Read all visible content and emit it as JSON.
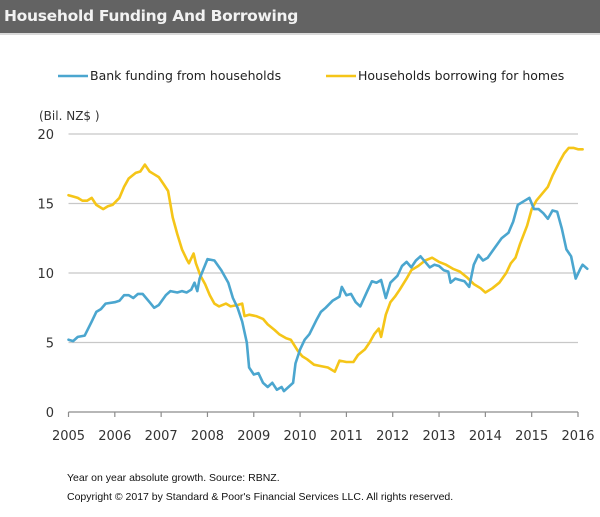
{
  "header": {
    "title": "Household Funding And Borrowing"
  },
  "footer": {
    "note": "Year on year absolute growth. Source: RBNZ.",
    "copyright": "Copyright © 2017 by Standard & Poor's Financial Services LLC. All rights reserved."
  },
  "chart_data": {
    "type": "line",
    "title": "Household Funding And Borrowing",
    "xlabel": "",
    "ylabel": "(Bil. NZ$ )",
    "xlim": [
      2005,
      2016
    ],
    "ylim": [
      0,
      20
    ],
    "x_ticks": [
      "2005",
      "2006",
      "2007",
      "2008",
      "2009",
      "2010",
      "2011",
      "2012",
      "2013",
      "2014",
      "2015",
      "2016"
    ],
    "y_ticks": [
      "0",
      "5",
      "10",
      "15",
      "20"
    ],
    "grid": "horizontal",
    "legend_position": "top",
    "series": [
      {
        "name": "Bank funding from households",
        "color": "#4BA6CF",
        "x": [
          2005.0,
          2005.1,
          2005.2,
          2005.35,
          2005.5,
          2005.6,
          2005.7,
          2005.8,
          2006.0,
          2006.1,
          2006.2,
          2006.3,
          2006.4,
          2006.5,
          2006.6,
          2006.75,
          2006.85,
          2006.95,
          2007.1,
          2007.2,
          2007.35,
          2007.45,
          2007.55,
          2007.65,
          2007.72,
          2007.78,
          2007.83,
          2008.0,
          2008.15,
          2008.3,
          2008.45,
          2008.55,
          2008.65,
          2008.75,
          2008.85,
          2008.9,
          2009.0,
          2009.1,
          2009.2,
          2009.3,
          2009.4,
          2009.5,
          2009.6,
          2009.65,
          2009.75,
          2009.85,
          2009.9,
          2010.0,
          2010.1,
          2010.2,
          2010.35,
          2010.45,
          2010.55,
          2010.7,
          2010.85,
          2010.9,
          2011.0,
          2011.1,
          2011.2,
          2011.3,
          2011.45,
          2011.55,
          2011.65,
          2011.75,
          2011.85,
          2011.95,
          2012.1,
          2012.2,
          2012.3,
          2012.4,
          2012.5,
          2012.6,
          2012.7,
          2012.8,
          2012.9,
          2013.0,
          2013.1,
          2013.2,
          2013.25,
          2013.35,
          2013.45,
          2013.55,
          2013.65,
          2013.75,
          2013.85,
          2013.95,
          2014.05,
          2014.2,
          2014.35,
          2014.5,
          2014.6,
          2014.7,
          2014.85,
          2014.95,
          2015.05,
          2015.15,
          2015.25,
          2015.35,
          2015.45,
          2015.55,
          2015.65,
          2015.75,
          2015.85,
          2015.95,
          2016.05,
          2016.1,
          2016.2
        ],
        "values": [
          5.2,
          5.1,
          5.4,
          5.5,
          6.5,
          7.2,
          7.4,
          7.8,
          7.9,
          8.0,
          8.4,
          8.4,
          8.2,
          8.5,
          8.5,
          7.9,
          7.5,
          7.7,
          8.4,
          8.7,
          8.6,
          8.7,
          8.6,
          8.8,
          9.3,
          8.7,
          9.6,
          11.0,
          10.9,
          10.2,
          9.3,
          8.2,
          7.5,
          6.5,
          5.0,
          3.2,
          2.7,
          2.8,
          2.1,
          1.8,
          2.1,
          1.6,
          1.8,
          1.5,
          1.8,
          2.1,
          3.5,
          4.5,
          5.2,
          5.6,
          6.6,
          7.2,
          7.5,
          8.0,
          8.3,
          9.0,
          8.4,
          8.5,
          7.9,
          7.6,
          8.7,
          9.4,
          9.3,
          9.5,
          8.2,
          9.3,
          9.8,
          10.5,
          10.8,
          10.4,
          10.9,
          11.2,
          10.8,
          10.4,
          10.6,
          10.5,
          10.2,
          10.1,
          9.3,
          9.6,
          9.5,
          9.4,
          9.0,
          10.6,
          11.3,
          10.9,
          11.1,
          11.8,
          12.5,
          12.9,
          13.7,
          14.9,
          15.2,
          15.4,
          14.6,
          14.6,
          14.3,
          13.9,
          14.5,
          14.4,
          13.2,
          11.7,
          11.2,
          9.6,
          10.3,
          10.6,
          10.3
        ]
      },
      {
        "name": "Households borrowing for homes",
        "color": "#F5C518",
        "x": [
          2005.0,
          2005.1,
          2005.2,
          2005.3,
          2005.4,
          2005.5,
          2005.6,
          2005.75,
          2005.85,
          2005.95,
          2006.1,
          2006.2,
          2006.3,
          2006.45,
          2006.55,
          2006.65,
          2006.75,
          2006.85,
          2006.95,
          2007.05,
          2007.15,
          2007.25,
          2007.35,
          2007.45,
          2007.55,
          2007.6,
          2007.7,
          2007.75,
          2007.85,
          2007.95,
          2008.05,
          2008.15,
          2008.25,
          2008.4,
          2008.5,
          2008.65,
          2008.75,
          2008.8,
          2008.9,
          2009.05,
          2009.2,
          2009.3,
          2009.45,
          2009.55,
          2009.7,
          2009.8,
          2009.95,
          2010.05,
          2010.15,
          2010.3,
          2010.45,
          2010.6,
          2010.75,
          2010.85,
          2011.0,
          2011.15,
          2011.25,
          2011.4,
          2011.5,
          2011.6,
          2011.7,
          2011.75,
          2011.85,
          2011.95,
          2012.05,
          2012.15,
          2012.3,
          2012.4,
          2012.55,
          2012.7,
          2012.85,
          2013.0,
          2013.15,
          2013.3,
          2013.45,
          2013.6,
          2013.75,
          2013.9,
          2014.0,
          2014.15,
          2014.3,
          2014.45,
          2014.55,
          2014.65,
          2014.75,
          2014.9,
          2015.0,
          2015.1,
          2015.2,
          2015.35,
          2015.45,
          2015.6,
          2015.7,
          2015.8,
          2015.9,
          2016.0,
          2016.1
        ],
        "values": [
          15.6,
          15.5,
          15.4,
          15.2,
          15.2,
          15.4,
          14.9,
          14.6,
          14.8,
          14.9,
          15.4,
          16.2,
          16.8,
          17.2,
          17.3,
          17.8,
          17.3,
          17.1,
          16.9,
          16.4,
          15.9,
          14.0,
          12.8,
          11.7,
          11.0,
          10.7,
          11.4,
          10.7,
          9.8,
          9.2,
          8.4,
          7.8,
          7.6,
          7.8,
          7.6,
          7.7,
          7.8,
          6.9,
          7.0,
          6.9,
          6.7,
          6.3,
          5.9,
          5.6,
          5.3,
          5.2,
          4.4,
          4.0,
          3.8,
          3.4,
          3.3,
          3.2,
          2.9,
          3.7,
          3.6,
          3.6,
          4.1,
          4.5,
          5.0,
          5.6,
          6.0,
          5.4,
          7.0,
          7.9,
          8.3,
          8.8,
          9.6,
          10.2,
          10.5,
          10.9,
          11.1,
          10.8,
          10.6,
          10.3,
          10.1,
          9.7,
          9.2,
          8.9,
          8.6,
          8.9,
          9.3,
          10.0,
          10.7,
          11.1,
          12.1,
          13.4,
          14.6,
          15.2,
          15.6,
          16.2,
          17.0,
          18.0,
          18.6,
          19.0,
          19.0,
          18.9,
          18.9
        ]
      }
    ]
  }
}
